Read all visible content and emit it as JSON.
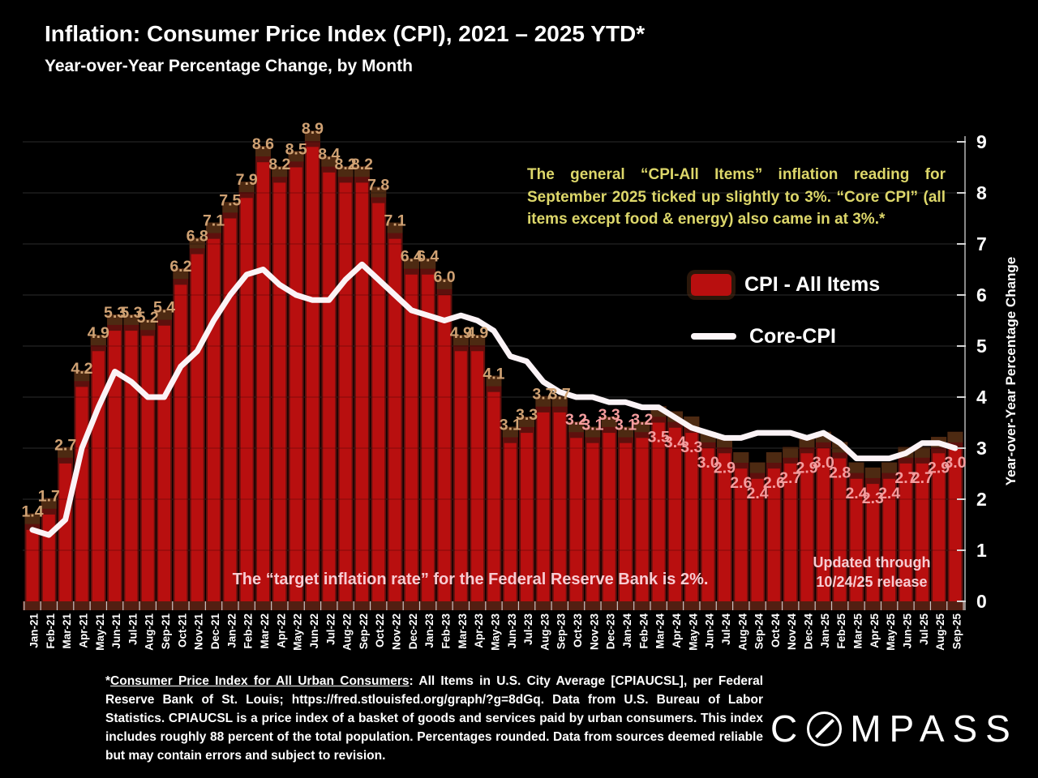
{
  "header": {
    "title": "Inflation: Consumer Price Index (CPI), 2021 – 2025 YTD*",
    "subtitle": "Year-over-Year Percentage Change, by Month"
  },
  "annotation": {
    "text": "The general “CPI-All Items” inflation reading for September 2025 ticked up slightly to 3%. “Core CPI” (all items except food & energy) also came in at 3%.*"
  },
  "legend": {
    "items": [
      {
        "label": "CPI - All Items",
        "type": "bar-swatch",
        "color": "#b80f0f"
      },
      {
        "label": "Core-CPI",
        "type": "line-swatch",
        "color": "#ffffff"
      }
    ]
  },
  "notes": {
    "target_note": "The “target inflation rate” for the Federal Reserve Bank is 2%.",
    "updated_line1": "Updated through",
    "updated_line2": "10/24/25 release"
  },
  "footnote": {
    "asterisk": "*",
    "underlined": "Consumer Price Index for All Urban Consumers",
    "rest": ": All Items in U.S. City Average [CPIAUCSL], per Federal Reserve Bank of St. Louis; https://fred.stlouisfed.org/graph/?g=8dGq. Data from U.S. Bureau of Labor Statistics. CPIAUCSL is a price index of a basket of goods and services paid by urban consumers. This index includes roughly 88 percent of the total population. Percentages rounded. Data from sources deemed reliable but may contain errors and subject to revision."
  },
  "logo": {
    "c": "C",
    "rest": "MPASS",
    "name": "COMPASS"
  },
  "chart_data": {
    "type": "bar",
    "title": "Inflation: Consumer Price Index (CPI), 2021 – 2025 YTD",
    "xlabel": "",
    "ylabel": "Year-over-Year Percentage Change",
    "ylim": [
      0,
      9
    ],
    "y_ticks": [
      0,
      1,
      2,
      3,
      4,
      5,
      6,
      7,
      8,
      9
    ],
    "grid": true,
    "legend_position": "right-middle",
    "categories": [
      "Jan-21",
      "Feb-21",
      "Mar-21",
      "Apr-21",
      "May-21",
      "Jun-21",
      "Jul-21",
      "Aug-21",
      "Sep-21",
      "Oct-21",
      "Nov-21",
      "Dec-21",
      "Jan-22",
      "Feb-22",
      "Mar-22",
      "Apr-22",
      "May-22",
      "Jun-22",
      "Jul-22",
      "Aug-22",
      "Sep-22",
      "Oct-22",
      "Nov-22",
      "Dec-22",
      "Jan-23",
      "Feb-23",
      "Mar-23",
      "Apr-23",
      "May-23",
      "Jun-23",
      "Jul-23",
      "Aug-23",
      "Sep-23",
      "Oct-23",
      "Nov-23",
      "Dec-23",
      "Jan-24",
      "Feb-24",
      "Mar-24",
      "Apr-24",
      "May-24",
      "Jun-24",
      "Jul-24",
      "Aug-24",
      "Sep-24",
      "Oct-24",
      "Nov-24",
      "Dec-24",
      "Jan-25",
      "Feb-25",
      "Mar-25",
      "Apr-25",
      "May-25",
      "Jun-25",
      "Jul-25",
      "Aug-25",
      "Sep-25"
    ],
    "series": [
      {
        "name": "CPI - All Items",
        "type": "bar",
        "color": "#b80f0f",
        "values": [
          1.4,
          1.7,
          2.7,
          4.2,
          4.9,
          5.3,
          5.3,
          5.2,
          5.4,
          6.2,
          6.8,
          7.1,
          7.5,
          7.9,
          8.6,
          8.2,
          8.5,
          8.9,
          8.4,
          8.2,
          8.2,
          7.8,
          7.1,
          6.4,
          6.4,
          6.0,
          4.9,
          4.9,
          4.1,
          3.1,
          3.3,
          3.7,
          3.7,
          3.2,
          3.1,
          3.3,
          3.1,
          3.2,
          3.5,
          3.4,
          3.3,
          3.0,
          2.9,
          2.6,
          2.4,
          2.6,
          2.7,
          2.9,
          3.0,
          2.8,
          2.4,
          2.3,
          2.4,
          2.7,
          2.7,
          2.9,
          3.0
        ]
      },
      {
        "name": "Core-CPI",
        "type": "line",
        "color": "#fbf3f6",
        "values": [
          1.4,
          1.3,
          1.6,
          3.0,
          3.8,
          4.5,
          4.3,
          4.0,
          4.0,
          4.6,
          4.9,
          5.5,
          6.0,
          6.4,
          6.5,
          6.2,
          6.0,
          5.9,
          5.9,
          6.3,
          6.6,
          6.3,
          6.0,
          5.7,
          5.6,
          5.5,
          5.6,
          5.5,
          5.3,
          4.8,
          4.7,
          4.3,
          4.1,
          4.0,
          4.0,
          3.9,
          3.9,
          3.8,
          3.8,
          3.6,
          3.4,
          3.3,
          3.2,
          3.2,
          3.3,
          3.3,
          3.3,
          3.2,
          3.3,
          3.1,
          2.8,
          2.8,
          2.8,
          2.9,
          3.1,
          3.1,
          3.0
        ]
      }
    ],
    "label_style": {
      "early_color": "#cfa173",
      "late_color": "#f49c9e",
      "color_switch_index": 33,
      "inside_from_index": 38
    }
  }
}
